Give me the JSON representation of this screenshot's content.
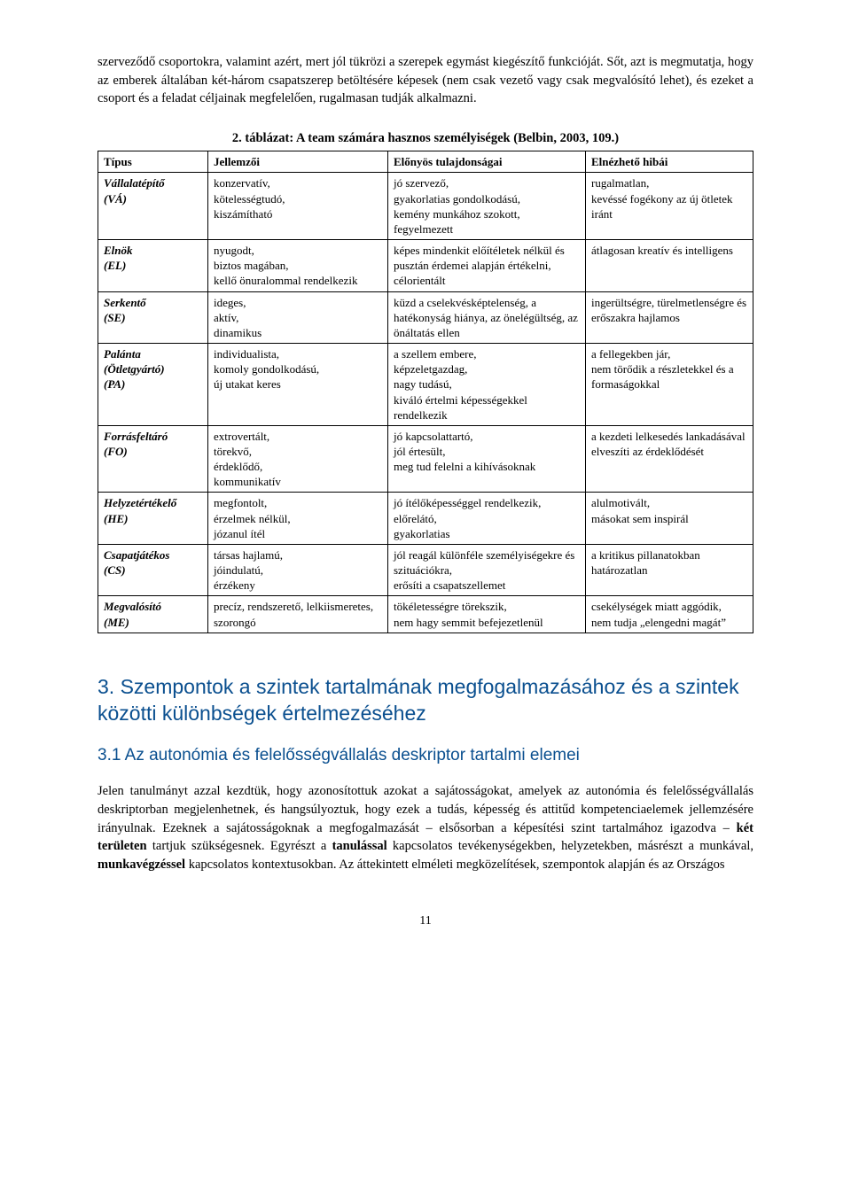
{
  "intro": "szerveződő csoportokra, valamint azért, mert jól tükrözi a szerepek egymást kiegészítő funkcióját. Sőt, azt is megmutatja, hogy az emberek általában két-három csapatszerep betöltésére képesek (nem csak vezető vagy csak megvalósító lehet), és ezeket a csoport és a feladat céljainak megfelelően, rugalmasan tudják alkalmazni.",
  "table": {
    "caption": "2. táblázat: A team számára hasznos személyiségek (Belbin, 2003, 109.)",
    "headers": [
      "Típus",
      "Jellemzői",
      "Előnyös tulajdonságai",
      "Elnézhető hibái"
    ],
    "rows": [
      {
        "type": "Vállalatépítő\n(VÁ)",
        "jell": "konzervatív,\nkötelességtudó,\nkiszámítható",
        "elony": "jó szervező,\ngyakorlatias gondolkodású,\nkemény munkához szokott,\nfegyelmezett",
        "hibai": "rugalmatlan,\nkevéssé fogékony az új ötletek iránt"
      },
      {
        "type": "Elnök\n(EL)",
        "jell": "nyugodt,\nbiztos magában,\nkellő önuralommal rendelkezik",
        "elony": "képes mindenkit előítéletek nélkül és pusztán érdemei alapján értékelni,\ncélorientált",
        "hibai": "átlagosan kreatív és intelligens"
      },
      {
        "type": "Serkentő\n(SE)",
        "jell": "ideges,\naktív,\ndinamikus",
        "elony": "küzd a cselekvésképtelenség, a hatékonyság hiánya, az önelégültség, az önáltatás ellen",
        "hibai": "ingerültségre, türelmetlenségre és erőszakra hajlamos"
      },
      {
        "type": "Palánta\n(Ötletgyártó)\n(PA)",
        "jell": "individualista,\nkomoly gondolkodású,\núj utakat keres",
        "elony": "a szellem embere,\nképzeletgazdag,\nnagy tudású,\nkiváló értelmi képességekkel rendelkezik",
        "hibai": "a fellegekben jár,\nnem törődik a részletekkel és a formaságokkal"
      },
      {
        "type": "Forrásfeltáró\n(FO)",
        "jell": "extrovertált,\ntörekvő,\nérdeklődő,\nkommunikatív",
        "elony": "jó kapcsolattartó,\njól értesült,\nmeg tud felelni a kihívásoknak",
        "hibai": "a kezdeti lelkesedés lankadásával elveszíti az érdeklődését"
      },
      {
        "type": "Helyzetértékelő\n(HE)",
        "jell": "megfontolt,\nérzelmek nélkül,\njózanul ítél",
        "elony": "jó ítélőképességgel rendelkezik,\nelőrelátó,\ngyakorlatias",
        "hibai": "alulmotivált,\nmásokat sem inspirál"
      },
      {
        "type": "Csapatjátékos\n(CS)",
        "jell": "társas hajlamú,\njóindulatú,\nérzékeny",
        "elony": "jól reagál különféle személyiségekre és szituációkra,\nerősíti a csapatszellemet",
        "hibai": "a kritikus pillanatokban határozatlan"
      },
      {
        "type": "Megvalósító\n(ME)",
        "jell": "precíz, rendszerető, lelkiismeretes, szorongó",
        "elony": "tökéletességre törekszik,\nnem hagy semmit befejezetlenül",
        "hibai": "csekélységek miatt aggódik,\nnem tudja „elengedni magát”"
      }
    ]
  },
  "section": {
    "heading": "3. Szempontok a szintek tartalmának megfogalmazásához és a szintek közötti különbségek értelmezéséhez",
    "sub_heading": "3.1 Az autonómia és felelősségvállalás deskriptor tartalmi elemei",
    "body_pre": "Jelen tanulmányt azzal kezdtük, hogy azonosítottuk azokat a sajátosságokat, amelyek az autonómia és felelősségvállalás deskriptorban megjelenhetnek, és hangsúlyoztuk, hogy ezek a tudás, képesség és attitűd kompetenciaelemek jellemzésére irányulnak. Ezeknek a sajátosságoknak a megfogalmazását – elsősorban a képesítési szint tartalmához igazodva – ",
    "bold1": "két területen",
    "body_mid1": " tartjuk szükségesnek. Egyrészt a ",
    "bold2": "tanulással",
    "body_mid2": " kapcsolatos tevékenységekben, helyzetekben, másrészt a munkával, ",
    "bold3": "munkavégzéssel",
    "body_post": " kapcsolatos kontextusokban. Az áttekintett elméleti megközelítések, szempontok alapján és az Országos"
  },
  "page_number": "11",
  "style": {
    "accent_color": "#0a4f8f",
    "body_font": "Georgia",
    "heading_font": "Arial",
    "table_border_color": "#000000",
    "background": "#ffffff"
  }
}
